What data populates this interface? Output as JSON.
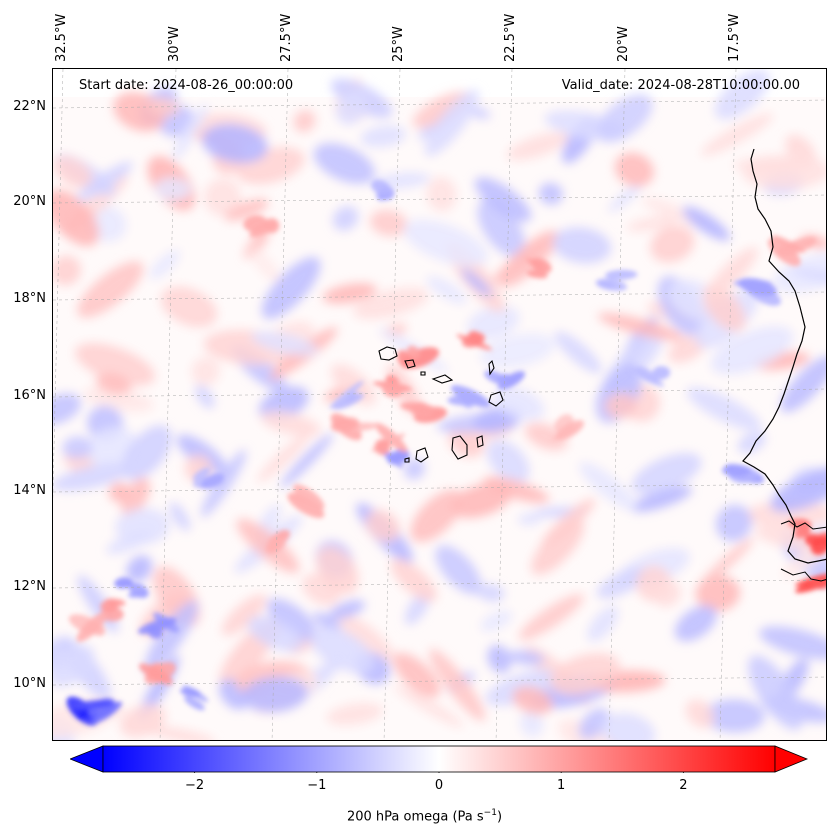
{
  "map": {
    "start_date": "Start date: 2024-08-26_00:00:00",
    "valid_date": "Valid_date: 2024-08-28T10:00:00.00",
    "lon_labels": [
      "32.5°W",
      "30°W",
      "27.5°W",
      "25°W",
      "22.5°W",
      "20°W",
      "17.5°W"
    ],
    "lat_labels": [
      "22°N",
      "20°N",
      "18°N",
      "16°N",
      "14°N",
      "12°N",
      "10°N"
    ],
    "extent": {
      "lon_min": -32.6,
      "lon_max": -15.5,
      "lat_min": 8.9,
      "lat_max": 22.8
    },
    "gridlines": true,
    "features": [
      "Cape Verde islands",
      "West African coastline (Senegal, Gambia, Guinea-Bissau)"
    ]
  },
  "colorbar": {
    "label": "200 hPa omega (Pa s",
    "label_sup": "−1",
    "label_end": ")",
    "ticks": [
      "−2",
      "−1",
      "0",
      "1",
      "2"
    ],
    "tick_values": [
      -2,
      -1,
      0,
      1,
      2
    ],
    "range": [
      -2.75,
      2.75
    ],
    "low_color": "#0000ff",
    "mid_color": "#ffffff",
    "high_color": "#ff0000",
    "extend": "both"
  }
}
